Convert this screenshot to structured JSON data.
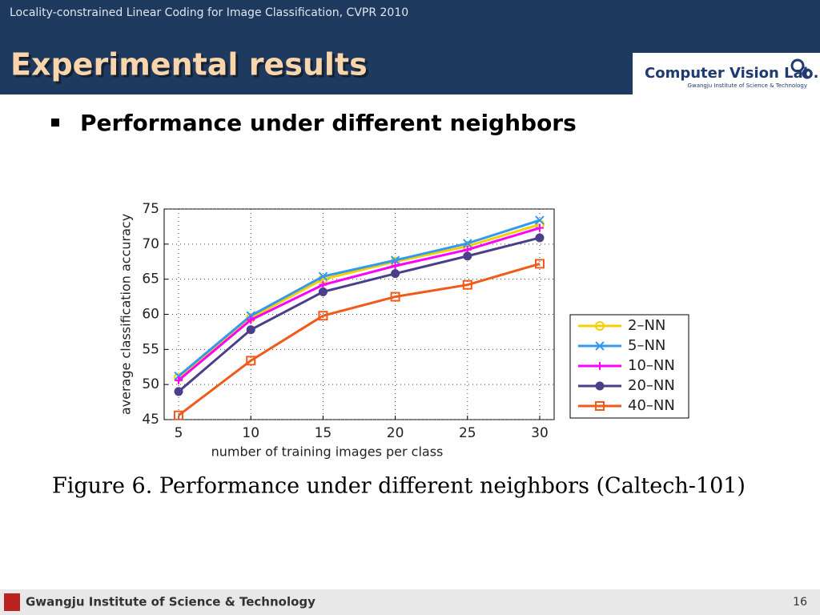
{
  "header": {
    "subtitle": "Locality-constrained Linear Coding for Image Classification, CVPR 2010",
    "title": "Experimental results",
    "logo_title": "Computer Vision Lab.",
    "logo_subtitle": "Gwangju Institute of Science & Technology"
  },
  "bullet": "Performance under different neighbors",
  "chart_data": {
    "type": "line",
    "xlabel": "number of training images per class",
    "ylabel": "average classification accuracy",
    "x": [
      5,
      10,
      15,
      20,
      25,
      30
    ],
    "xlim": [
      4,
      31
    ],
    "xticks": [
      5,
      10,
      15,
      20,
      25,
      30
    ],
    "ylim": [
      45,
      75
    ],
    "yticks": [
      45,
      50,
      55,
      60,
      65,
      70,
      75
    ],
    "grid": true,
    "legend": "right",
    "series": [
      {
        "name": "2–NN",
        "color": "#f5d000",
        "marker": "circle",
        "values": [
          51.0,
          59.5,
          65.0,
          67.5,
          69.7,
          72.8
        ]
      },
      {
        "name": "5–NN",
        "color": "#3399ee",
        "marker": "x",
        "values": [
          51.2,
          59.8,
          65.4,
          67.7,
          70.1,
          73.4
        ]
      },
      {
        "name": "10–NN",
        "color": "#ff00ff",
        "marker": "plus",
        "values": [
          50.6,
          59.2,
          64.2,
          66.9,
          69.2,
          72.3
        ]
      },
      {
        "name": "20–NN",
        "color": "#4b3f8c",
        "marker": "dot",
        "values": [
          49.0,
          57.8,
          63.2,
          65.8,
          68.3,
          70.9
        ]
      },
      {
        "name": "40–NN",
        "color": "#f05a1a",
        "marker": "square",
        "values": [
          45.6,
          53.4,
          59.8,
          62.5,
          64.2,
          67.2
        ]
      }
    ]
  },
  "caption": "Figure 6. Performance under different neighbors (Caltech-101)",
  "footer": {
    "institute": "Gwangju Institute of Science & Technology",
    "page": "16"
  }
}
